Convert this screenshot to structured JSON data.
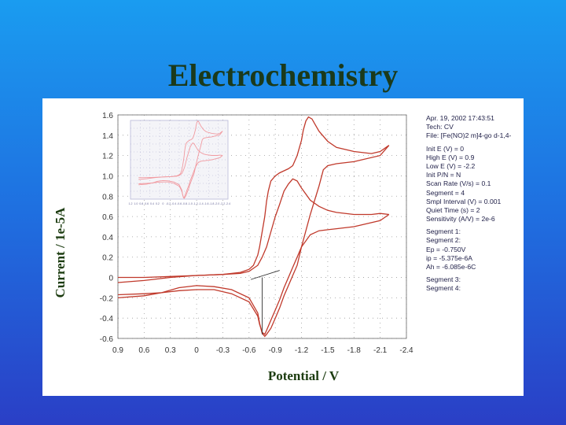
{
  "slide": {
    "title": "Electrochemistry"
  },
  "info_panel": {
    "header": [
      "Apr. 19, 2002   17:43:51",
      "Tech: CV",
      "File: [Fe(NO)2 m]4-go d-1,4-"
    ],
    "params": [
      "Init E (V) = 0",
      "High E (V) = 0.9",
      "Low E (V) = -2.2",
      "Init P/N = N",
      "Scan Rate (V/s) = 0.1",
      "Segment = 4",
      "Smpl Interval (V) = 0.001",
      "Quiet Time (s) = 2",
      "Sensitivity (A/V) = 2e-6"
    ],
    "segments": [
      "Segment 1:",
      "Segment 2:",
      "Ep = -0.750V",
      "ip = -5.375e-6A",
      "Ah = -6.085e-6C"
    ],
    "footer": [
      "Segment 3:",
      "Segment 4:"
    ]
  },
  "chart_data": {
    "type": "line",
    "xlabel": "Potential / V",
    "ylabel": "Current / 1e-5A",
    "xlim": [
      0.9,
      -2.4
    ],
    "ylim": [
      -0.6,
      1.6
    ],
    "x_reversed": true,
    "xticks": [
      0.9,
      0.6,
      0.3,
      0,
      -0.3,
      -0.6,
      -0.9,
      -1.2,
      -1.5,
      -1.8,
      -2.1,
      -2.4
    ],
    "xtick_labels": [
      "0.9",
      "0.6",
      "0.3",
      "0",
      "-0.3",
      "-0.6",
      "-0.9",
      "-1.2",
      "-1.5",
      "-1.8",
      "-2.1",
      "-2.4"
    ],
    "yticks": [
      1.6,
      1.4,
      1.2,
      1.0,
      0.8,
      0.6,
      0.4,
      0.2,
      0,
      -0.2,
      -0.4,
      -0.6
    ],
    "ytick_labels": [
      "1.6",
      "1.4",
      "1.2",
      "1.0",
      "0.8",
      "0.6",
      "0.4",
      "0.2",
      "0",
      "-0.2",
      "-0.4",
      "-0.6"
    ],
    "grid": true,
    "line_color": "#c0392b",
    "series": [
      {
        "x": [
          0.9,
          0.6,
          0.3,
          0.0,
          -0.3,
          -0.5,
          -0.6,
          -0.65,
          -0.7,
          -0.72,
          -0.75,
          -0.78,
          -0.8,
          -0.82,
          -0.85,
          -0.9,
          -0.95,
          -1.0,
          -1.05,
          -1.1,
          -1.15,
          -1.2,
          -1.22,
          -1.25,
          -1.28,
          -1.32,
          -1.36,
          -1.4,
          -1.5,
          -1.6,
          -1.8,
          -2.0,
          -2.1,
          -2.2
        ],
        "y": [
          -0.05,
          -0.03,
          0.0,
          0.02,
          0.03,
          0.05,
          0.08,
          0.12,
          0.22,
          0.3,
          0.45,
          0.6,
          0.75,
          0.85,
          0.95,
          1.0,
          1.03,
          1.05,
          1.07,
          1.1,
          1.2,
          1.35,
          1.45,
          1.54,
          1.58,
          1.56,
          1.5,
          1.44,
          1.34,
          1.28,
          1.24,
          1.22,
          1.24,
          1.3
        ]
      },
      {
        "x": [
          -2.2,
          -2.1,
          -1.8,
          -1.6,
          -1.5,
          -1.45,
          -1.4,
          -1.3,
          -1.2,
          -1.15,
          -1.1,
          -1.05,
          -1.0,
          -0.95,
          -0.9,
          -0.85,
          -0.8,
          -0.78,
          -0.75,
          -0.72,
          -0.7,
          -0.6,
          -0.4,
          -0.2,
          0.0,
          0.2,
          0.4,
          0.6,
          0.9
        ],
        "y": [
          1.3,
          1.2,
          1.14,
          1.12,
          1.1,
          1.06,
          0.9,
          0.62,
          0.3,
          0.12,
          0.02,
          -0.08,
          -0.18,
          -0.3,
          -0.4,
          -0.5,
          -0.56,
          -0.58,
          -0.55,
          -0.45,
          -0.35,
          -0.2,
          -0.12,
          -0.09,
          -0.08,
          -0.1,
          -0.15,
          -0.18,
          -0.2
        ]
      },
      {
        "x": [
          0.9,
          0.6,
          0.3,
          0.0,
          -0.3,
          -0.5,
          -0.6,
          -0.7,
          -0.75,
          -0.8,
          -0.85,
          -0.9,
          -0.95,
          -1.0,
          -1.05,
          -1.1,
          -1.15,
          -1.2,
          -1.3,
          -1.4,
          -1.5,
          -1.6,
          -1.8,
          -2.0,
          -2.1,
          -2.2
        ],
        "y": [
          0.0,
          0.0,
          0.01,
          0.02,
          0.03,
          0.04,
          0.06,
          0.12,
          0.2,
          0.3,
          0.45,
          0.6,
          0.72,
          0.85,
          0.92,
          0.97,
          0.95,
          0.88,
          0.76,
          0.7,
          0.66,
          0.64,
          0.62,
          0.62,
          0.63,
          0.62
        ]
      },
      {
        "x": [
          -2.2,
          -2.1,
          -1.8,
          -1.6,
          -1.5,
          -1.4,
          -1.3,
          -1.2,
          -1.15,
          -1.1,
          -1.05,
          -1.0,
          -0.95,
          -0.9,
          -0.85,
          -0.8,
          -0.78,
          -0.75,
          -0.72,
          -0.7,
          -0.6,
          -0.4,
          -0.2,
          0.0,
          0.2,
          0.4,
          0.6,
          0.9
        ],
        "y": [
          0.62,
          0.56,
          0.5,
          0.48,
          0.47,
          0.46,
          0.42,
          0.3,
          0.2,
          0.1,
          0.0,
          -0.1,
          -0.22,
          -0.32,
          -0.42,
          -0.52,
          -0.56,
          -0.54,
          -0.46,
          -0.38,
          -0.24,
          -0.16,
          -0.12,
          -0.12,
          -0.13,
          -0.15,
          -0.16,
          -0.17
        ]
      }
    ],
    "inset": {
      "xlim": [
        1.2,
        -2.4
      ],
      "ylim": [
        -0.6,
        1.6
      ],
      "xtick_labels": [
        "1.2",
        "1.0",
        "0.8",
        "0.6",
        "0.4",
        "0.2",
        "0",
        "-0.2",
        "-0.4",
        "-0.6",
        "-0.8",
        "-1.0",
        "-1.2",
        "-1.4",
        "-1.6",
        "-1.8",
        "-2.0",
        "-2.2",
        "-2.4"
      ]
    }
  }
}
